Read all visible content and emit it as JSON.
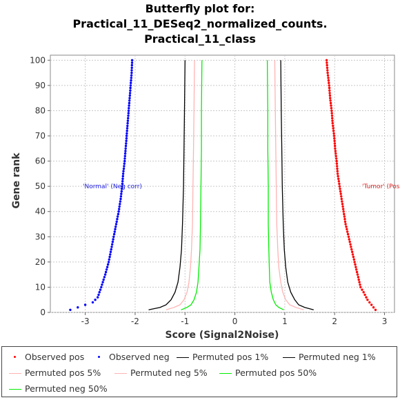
{
  "chart_data": {
    "type": "scatter",
    "title": [
      "Butterfly plot for:",
      "Practical_11_DESeq2_normalized_counts.",
      "Practical_11_class"
    ],
    "xlabel": "Score (Signal2Noise)",
    "ylabel": "Gene rank",
    "xlim": [
      -3.7,
      3.2
    ],
    "ylim": [
      0,
      102
    ],
    "x_ticks": [
      "-3",
      "-2",
      "-1",
      "0",
      "1",
      "2",
      "3"
    ],
    "y_ticks": [
      "0",
      "10",
      "20",
      "30",
      "40",
      "50",
      "60",
      "70",
      "80",
      "90",
      "100"
    ],
    "grid": true,
    "annotations": [
      {
        "text": "'Normal' (Neg corr)",
        "x": -3.05,
        "y": 50,
        "color": "#2222dd"
      },
      {
        "text": "'Tumor' (Pos corr)",
        "x": 2.55,
        "y": 50,
        "color": "#dd2222"
      }
    ],
    "series": [
      {
        "name": "Observed pos",
        "kind": "points",
        "color": "#ff0000",
        "points": [
          [
            2.82,
            1
          ],
          [
            2.74,
            3
          ],
          [
            2.66,
            5
          ],
          [
            2.58,
            8
          ],
          [
            2.52,
            10
          ],
          [
            2.46,
            15
          ],
          [
            2.4,
            20
          ],
          [
            2.34,
            25
          ],
          [
            2.28,
            30
          ],
          [
            2.22,
            35
          ],
          [
            2.18,
            40
          ],
          [
            2.14,
            45
          ],
          [
            2.1,
            50
          ],
          [
            2.06,
            55
          ],
          [
            2.04,
            60
          ],
          [
            2.01,
            65
          ],
          [
            1.99,
            70
          ],
          [
            1.96,
            75
          ],
          [
            1.94,
            80
          ],
          [
            1.91,
            85
          ],
          [
            1.89,
            90
          ],
          [
            1.86,
            95
          ],
          [
            1.84,
            100
          ]
        ]
      },
      {
        "name": "Observed neg",
        "kind": "points",
        "color": "#0000ff",
        "points": [
          [
            -3.3,
            1
          ],
          [
            -3.15,
            2
          ],
          [
            -3.0,
            3
          ],
          [
            -2.85,
            4
          ],
          [
            -2.75,
            6
          ],
          [
            -2.68,
            10
          ],
          [
            -2.6,
            15
          ],
          [
            -2.53,
            20
          ],
          [
            -2.48,
            25
          ],
          [
            -2.43,
            30
          ],
          [
            -2.38,
            35
          ],
          [
            -2.33,
            40
          ],
          [
            -2.29,
            45
          ],
          [
            -2.26,
            50
          ],
          [
            -2.24,
            55
          ],
          [
            -2.21,
            60
          ],
          [
            -2.19,
            65
          ],
          [
            -2.17,
            70
          ],
          [
            -2.15,
            75
          ],
          [
            -2.13,
            80
          ],
          [
            -2.11,
            85
          ],
          [
            -2.09,
            90
          ],
          [
            -2.07,
            95
          ],
          [
            -2.06,
            100
          ]
        ]
      },
      {
        "name": "Permuted pos 1%",
        "kind": "line",
        "color": "#000000",
        "points": [
          [
            1.58,
            1
          ],
          [
            1.4,
            2
          ],
          [
            1.28,
            3
          ],
          [
            1.2,
            5
          ],
          [
            1.12,
            8
          ],
          [
            1.06,
            12
          ],
          [
            1.02,
            18
          ],
          [
            0.99,
            25
          ],
          [
            0.97,
            35
          ],
          [
            0.95,
            50
          ],
          [
            0.94,
            65
          ],
          [
            0.93,
            80
          ],
          [
            0.92,
            100
          ]
        ]
      },
      {
        "name": "Permuted neg 1%",
        "kind": "line",
        "color": "#000000",
        "points": [
          [
            -1.73,
            1
          ],
          [
            -1.5,
            2
          ],
          [
            -1.38,
            3
          ],
          [
            -1.28,
            5
          ],
          [
            -1.2,
            8
          ],
          [
            -1.14,
            12
          ],
          [
            -1.1,
            18
          ],
          [
            -1.07,
            25
          ],
          [
            -1.05,
            35
          ],
          [
            -1.03,
            50
          ],
          [
            -1.02,
            65
          ],
          [
            -1.01,
            80
          ],
          [
            -1.0,
            100
          ]
        ]
      },
      {
        "name": "Permuted pos 5%",
        "kind": "line",
        "color": "#ffb3b3",
        "points": [
          [
            1.38,
            1
          ],
          [
            1.22,
            2
          ],
          [
            1.1,
            3
          ],
          [
            1.02,
            5
          ],
          [
            0.96,
            8
          ],
          [
            0.92,
            12
          ],
          [
            0.88,
            18
          ],
          [
            0.86,
            25
          ],
          [
            0.84,
            35
          ],
          [
            0.83,
            50
          ],
          [
            0.82,
            65
          ],
          [
            0.81,
            80
          ],
          [
            0.8,
            100
          ]
        ]
      },
      {
        "name": "Permuted neg 5%",
        "kind": "line",
        "color": "#ffb3b3",
        "points": [
          [
            -1.38,
            1
          ],
          [
            -1.22,
            2
          ],
          [
            -1.1,
            3
          ],
          [
            -1.02,
            5
          ],
          [
            -0.96,
            8
          ],
          [
            -0.92,
            12
          ],
          [
            -0.89,
            18
          ],
          [
            -0.87,
            25
          ],
          [
            -0.85,
            35
          ],
          [
            -0.84,
            50
          ],
          [
            -0.83,
            65
          ],
          [
            -0.82,
            80
          ],
          [
            -0.81,
            100
          ]
        ]
      },
      {
        "name": "Permuted pos 50%",
        "kind": "line",
        "color": "#00ee00",
        "points": [
          [
            0.98,
            1
          ],
          [
            0.88,
            2
          ],
          [
            0.82,
            3
          ],
          [
            0.77,
            5
          ],
          [
            0.73,
            8
          ],
          [
            0.7,
            12
          ],
          [
            0.69,
            18
          ],
          [
            0.68,
            25
          ],
          [
            0.67,
            35
          ],
          [
            0.67,
            50
          ],
          [
            0.66,
            65
          ],
          [
            0.66,
            80
          ],
          [
            0.65,
            100
          ]
        ]
      },
      {
        "name": "Permuted neg 50%",
        "kind": "line",
        "color": "#00ee00",
        "points": [
          [
            -1.08,
            1
          ],
          [
            -0.96,
            2
          ],
          [
            -0.88,
            3
          ],
          [
            -0.82,
            5
          ],
          [
            -0.77,
            8
          ],
          [
            -0.74,
            12
          ],
          [
            -0.72,
            18
          ],
          [
            -0.7,
            25
          ],
          [
            -0.69,
            35
          ],
          [
            -0.68,
            50
          ],
          [
            -0.67,
            65
          ],
          [
            -0.67,
            80
          ],
          [
            -0.66,
            100
          ]
        ]
      }
    ],
    "legend": {
      "placement": "bottom",
      "items": [
        {
          "label": "Observed pos",
          "marker": "dot",
          "color": "#ff0000"
        },
        {
          "label": "Observed neg",
          "marker": "dot",
          "color": "#0000ff"
        },
        {
          "label": "Permuted pos 1%",
          "marker": "line",
          "color": "#000000"
        },
        {
          "label": "Permuted neg 1%",
          "marker": "line",
          "color": "#000000"
        },
        {
          "label": "Permuted pos 5%",
          "marker": "line",
          "color": "#ffb3b3"
        },
        {
          "label": "Permuted neg 5%",
          "marker": "line",
          "color": "#ffb3b3"
        },
        {
          "label": "Permuted pos 50%",
          "marker": "line",
          "color": "#00ee00"
        },
        {
          "label": "Permuted neg 50%",
          "marker": "line",
          "color": "#00ee00"
        }
      ]
    }
  }
}
